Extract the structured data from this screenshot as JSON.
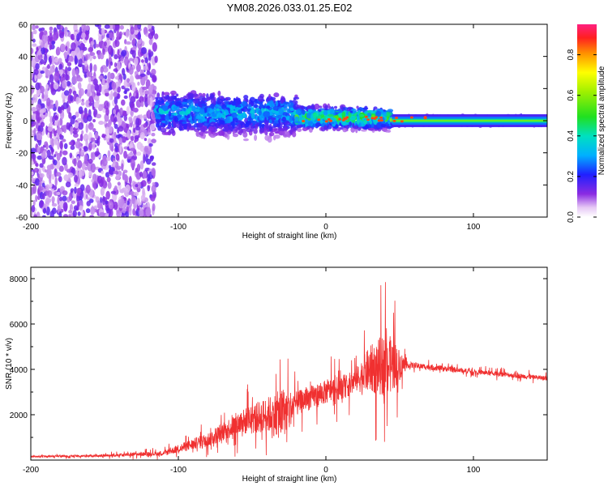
{
  "title": "YM08.2026.033.01.25.E02",
  "colors": {
    "snr_line": "#f03030",
    "background": "#ffffff",
    "axis": "#000000"
  },
  "chart_data": [
    {
      "type": "heatmap",
      "name": "spectrogram",
      "title": "YM08.2026.033.01.25.E02",
      "xlabel": "Height of straight line (km)",
      "ylabel": "Frequency (Hz)",
      "xlim": [
        -200,
        150
      ],
      "ylim": [
        -60,
        60
      ],
      "x_ticks": [
        -200,
        -100,
        0,
        100
      ],
      "y_ticks": [
        -60,
        -40,
        -20,
        0,
        20,
        40,
        60
      ],
      "description_series": [
        {
          "x_range": [
            -200,
            -115
          ],
          "freq_spread": 60,
          "amplitude": 0.2
        },
        {
          "x_range": [
            -115,
            -20
          ],
          "freq_spread": 15,
          "amplitude": 0.25,
          "center_freq": 5
        },
        {
          "x_range": [
            -20,
            45
          ],
          "freq_spread": 8,
          "amplitude": 0.4,
          "center_freq": 2
        },
        {
          "x_range": [
            45,
            150
          ],
          "freq_spread": 3,
          "amplitude": 0.5,
          "center_freq": 0
        }
      ],
      "colorbar": {
        "label": "Normalized spectral amplitude",
        "range": [
          0,
          0.95
        ],
        "ticks": [
          0.0,
          0.2,
          0.4,
          0.6,
          0.8
        ]
      }
    },
    {
      "type": "line",
      "name": "snr",
      "xlabel": "Height of straight line (km)",
      "ylabel": "SNR (10 * v/v)",
      "xlim": [
        -200,
        150
      ],
      "ylim": [
        0,
        8500
      ],
      "x_ticks": [
        -200,
        -100,
        0,
        100
      ],
      "y_ticks": [
        2000,
        4000,
        6000,
        8000
      ],
      "series": [
        {
          "name": "SNR",
          "envelope": [
            {
              "x": -200,
              "base": 150,
              "amp": 100
            },
            {
              "x": -150,
              "base": 200,
              "amp": 150
            },
            {
              "x": -110,
              "base": 300,
              "amp": 300
            },
            {
              "x": -80,
              "base": 900,
              "amp": 900
            },
            {
              "x": -60,
              "base": 1600,
              "amp": 1500
            },
            {
              "x": -40,
              "base": 2000,
              "amp": 2200
            },
            {
              "x": -30,
              "base": 2000,
              "amp": 3200
            },
            {
              "x": -20,
              "base": 2500,
              "amp": 1500
            },
            {
              "x": 0,
              "base": 3000,
              "amp": 1500
            },
            {
              "x": 15,
              "base": 3300,
              "amp": 1500
            },
            {
              "x": 20,
              "base": 3500,
              "amp": 1500
            },
            {
              "x": 30,
              "base": 4000,
              "amp": 3000
            },
            {
              "x": 40,
              "base": 4200,
              "amp": 4000
            },
            {
              "x": 45,
              "base": 4200,
              "amp": 3500
            },
            {
              "x": 55,
              "base": 4200,
              "amp": 400
            },
            {
              "x": 100,
              "base": 3900,
              "amp": 300
            },
            {
              "x": 150,
              "base": 3600,
              "amp": 300
            }
          ]
        }
      ]
    }
  ]
}
